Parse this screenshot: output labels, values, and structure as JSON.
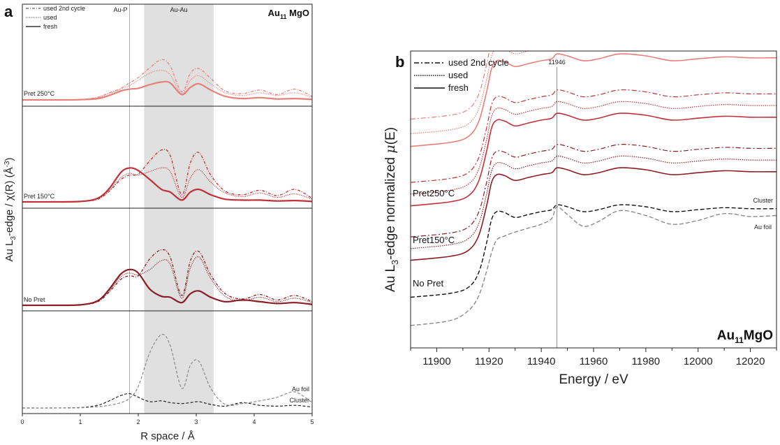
{
  "chart_data": [
    {
      "type": "line",
      "panel_label": "a",
      "title_main": "Au",
      "title_sub": "11",
      "title_rest": " MgO",
      "xlabel": "R space / Å",
      "ylabel_parts": [
        "Au L",
        "3",
        "-edge / χ(R) (Å",
        "-3",
        ")"
      ],
      "xlim": [
        0,
        5
      ],
      "xticks": [
        0,
        1,
        2,
        3,
        4,
        5
      ],
      "band_label": "Au-Au",
      "band_range": [
        2.1,
        3.3
      ],
      "marker_label": "Au-P",
      "marker_x": 1.85,
      "legend": [
        {
          "label": "used 2nd cycle",
          "dash": "4,2,1,2"
        },
        {
          "label": "used",
          "dash": "1,1.5"
        },
        {
          "label": "fresh",
          "dash": ""
        }
      ],
      "x": [
        0,
        0.5,
        1.0,
        1.3,
        1.5,
        1.7,
        1.85,
        2.0,
        2.2,
        2.4,
        2.55,
        2.75,
        2.9,
        3.05,
        3.25,
        3.5,
        3.8,
        4.1,
        4.4,
        4.7,
        5.0
      ],
      "panels": [
        {
          "name": "Pret 250°C",
          "label_color": "#e8807a",
          "series": [
            {
              "name": "fresh",
              "color": "#e8807a",
              "y": [
                0,
                0,
                0.2,
                1.5,
                5,
                10,
                12,
                13,
                17,
                20,
                19,
                6,
                14,
                18,
                11,
                4,
                1.5,
                2.5,
                1,
                1.5,
                0.5
              ]
            },
            {
              "name": "used",
              "color": "#e8807a",
              "y": [
                0,
                0,
                0.5,
                3,
                7,
                12,
                16,
                22,
                30,
                33,
                28,
                7,
                22,
                27,
                18,
                8,
                5,
                8,
                5,
                8,
                3
              ]
            },
            {
              "name": "used 2nd cycle",
              "color": "#e8807a",
              "y": [
                0,
                0,
                0.5,
                3,
                8,
                13,
                19,
                25,
                36,
                45,
                38,
                9,
                30,
                35,
                24,
                10,
                7,
                11,
                6,
                12,
                4
              ]
            }
          ]
        },
        {
          "name": "Pret 150°C",
          "label_color": "#c0323a",
          "series": [
            {
              "name": "fresh",
              "color": "#c0323a",
              "y": [
                0,
                0,
                0.5,
                4,
                15,
                33,
                38,
                35,
                25,
                14,
                11,
                2,
                11,
                14,
                8,
                3,
                2,
                2,
                1,
                1.5,
                0.5
              ]
            },
            {
              "name": "used",
              "color": "#c0323a",
              "y": [
                0,
                0,
                0.5,
                4,
                13,
                27,
                32,
                30,
                34,
                38,
                34,
                5,
                27,
                36,
                22,
                10,
                6,
                10,
                5,
                9,
                3
              ]
            },
            {
              "name": "used 2nd cycle",
              "color": "#c0323a",
              "y": [
                0,
                0,
                0.5,
                3,
                12,
                25,
                30,
                31,
                46,
                58,
                52,
                8,
                44,
                55,
                30,
                12,
                8,
                13,
                7,
                14,
                4
              ]
            }
          ]
        },
        {
          "name": "No Pret",
          "label_color": "#8b1d24",
          "series": [
            {
              "name": "fresh",
              "color": "#8b1d24",
              "y": [
                0,
                0,
                0.5,
                5,
                18,
                35,
                40,
                36,
                18,
                10,
                9,
                3,
                13,
                16,
                9,
                4,
                6,
                4,
                2,
                3,
                1
              ]
            },
            {
              "name": "used",
              "color": "#8b1d24",
              "y": [
                0,
                0,
                0.5,
                5,
                16,
                32,
                36,
                34,
                40,
                50,
                46,
                8,
                42,
                54,
                30,
                10,
                5,
                9,
                4,
                8,
                3
              ]
            },
            {
              "name": "used 2nd cycle",
              "color": "#8b1d24",
              "y": [
                0,
                0,
                0.5,
                4,
                15,
                29,
                33,
                33,
                52,
                62,
                54,
                11,
                50,
                60,
                34,
                13,
                7,
                12,
                6,
                11,
                4
              ]
            }
          ]
        },
        {
          "name": "",
          "label_color": "#333333",
          "series": [
            {
              "name": "Cluster",
              "color": "#222222",
              "y": [
                0,
                0,
                0.5,
                3,
                8,
                14,
                16,
                12,
                7,
                8,
                6,
                5,
                6,
                7,
                4,
                2,
                6,
                3,
                2,
                3,
                1
              ]
            },
            {
              "name": "Au foil",
              "color": "#8a8a8a",
              "y": [
                0,
                0,
                0.2,
                1.5,
                3,
                6,
                11,
                24,
                62,
                82,
                70,
                22,
                48,
                52,
                22,
                4,
                5,
                8,
                12,
                18,
                6
              ]
            }
          ],
          "curve_labels": [
            {
              "text": "Au foil",
              "color": "#8a8a8a"
            },
            {
              "text": "Cluster",
              "color": "#222222"
            }
          ]
        }
      ]
    },
    {
      "type": "line",
      "panel_label": "b",
      "title_main": "Au",
      "title_sub": "11",
      "title_rest": "MgO",
      "xlabel": "Energy / eV",
      "ylabel_parts": [
        "Au L",
        "3",
        "-edge normalized ",
        "μ",
        "(E)"
      ],
      "xlim": [
        11890,
        12030
      ],
      "xticks": [
        11900,
        11920,
        11940,
        11960,
        11980,
        12000,
        12020
      ],
      "ylim": [
        0,
        3.05
      ],
      "marker_label": "11946",
      "marker_x": 11946,
      "legend": [
        {
          "label": "used 2nd cycle",
          "dash": "7,3,2,3"
        },
        {
          "label": "used",
          "dash": "1.5,1.5"
        },
        {
          "label": "fresh",
          "dash": ""
        }
      ],
      "x": [
        11890,
        11905,
        11912,
        11916,
        11919,
        11921,
        11923,
        11926,
        11930,
        11935,
        11940,
        11944,
        11946,
        11950,
        11956,
        11962,
        11970,
        11980,
        11990,
        12000,
        12010,
        12020,
        12030
      ],
      "base": [
        0.1,
        0.14,
        0.2,
        0.35,
        0.65,
        0.9,
        0.98,
        0.97,
        0.92,
        0.95,
        0.98,
        1.0,
        1.05,
        1.03,
        0.98,
        1.0,
        1.05,
        1.03,
        0.98,
        1.0,
        1.02,
        1.01,
        1.01
      ],
      "foil": [
        -0.1,
        -0.05,
        0.05,
        0.2,
        0.45,
        0.65,
        0.78,
        0.82,
        0.86,
        0.9,
        0.94,
        1.0,
        1.12,
        1.04,
        0.92,
        0.97,
        1.08,
        1.03,
        0.94,
        0.98,
        1.05,
        1.02,
        1.03
      ],
      "groups": [
        {
          "name": "Pret250°C",
          "color": "#e8807a",
          "offsets": [
            1.97,
            2.1,
            2.25
          ]
        },
        {
          "name": "Pret150°C",
          "color": "#c0323a",
          "offsets": [
            1.36,
            1.48,
            1.6
          ]
        },
        {
          "name": "No Pret",
          "color": "#8b1d24",
          "offsets": [
            0.8,
            0.92,
            1.04
          ]
        }
      ],
      "cluster": {
        "name": "Cluster",
        "color": "#111111",
        "offset": 0.42
      },
      "au_foil": {
        "name": "Au foil",
        "color": "#8a8a8a",
        "offset": 0.33
      }
    }
  ]
}
